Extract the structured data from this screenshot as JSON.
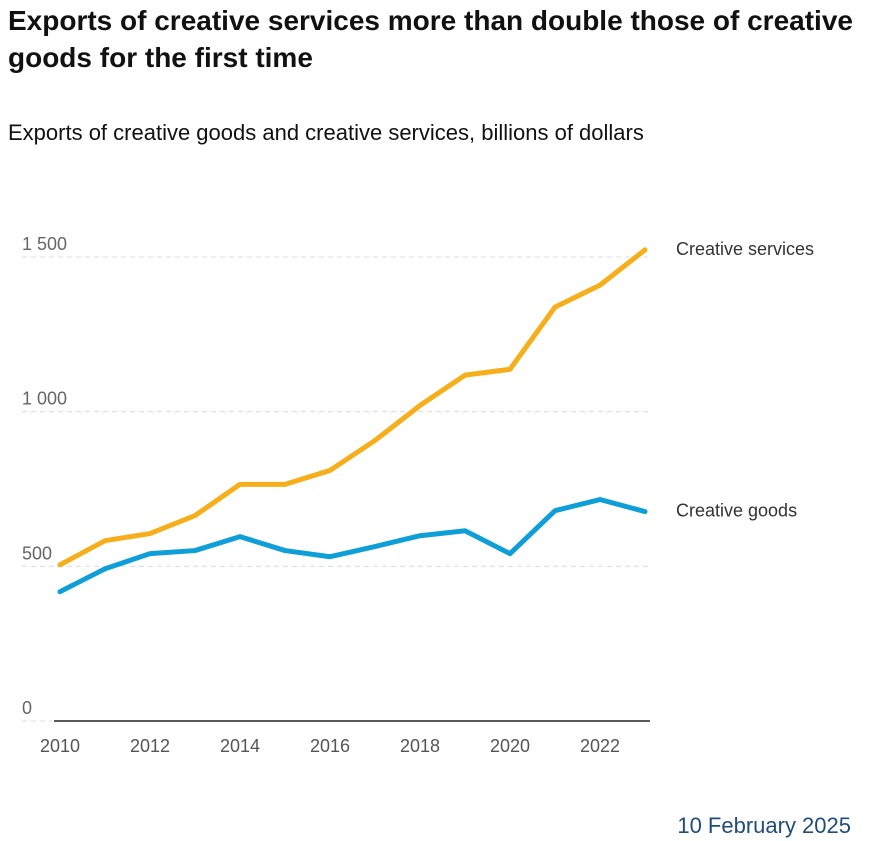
{
  "title": "Exports of creative services more than double those of creative goods for the first time",
  "subtitle": "Exports of creative goods and creative services, billions of dollars",
  "date": "10 February 2025",
  "chart_data": {
    "type": "line",
    "title": "Exports of creative services more than double those of creative goods for the first time",
    "subtitle": "Exports of creative goods and creative services, billions of dollars",
    "xlabel": "",
    "ylabel": "",
    "x": [
      2010,
      2011,
      2012,
      2013,
      2014,
      2015,
      2016,
      2017,
      2018,
      2019,
      2020,
      2021,
      2022,
      2023
    ],
    "xticks": [
      "2010",
      "2012",
      "2014",
      "2016",
      "2018",
      "2020",
      "2022"
    ],
    "xtick_values": [
      2010,
      2012,
      2014,
      2016,
      2018,
      2020,
      2022
    ],
    "yticks": [
      "0",
      "500",
      "1 000",
      "1 500"
    ],
    "ytick_values": [
      0,
      500,
      1000,
      1500
    ],
    "ylim": [
      0,
      1500
    ],
    "grid": true,
    "legend": "direct labels at right end of lines",
    "series": [
      {
        "name": "Creative services",
        "color": "#f6ae1a",
        "values": [
          505,
          583,
          606,
          664,
          765,
          765,
          810,
          907,
          1020,
          1118,
          1137,
          1338,
          1409,
          1523
        ]
      },
      {
        "name": "Creative goods",
        "color": "#0f9fd8",
        "values": [
          418,
          492,
          541,
          551,
          596,
          551,
          531,
          564,
          599,
          615,
          541,
          680,
          716,
          677
        ]
      }
    ]
  }
}
